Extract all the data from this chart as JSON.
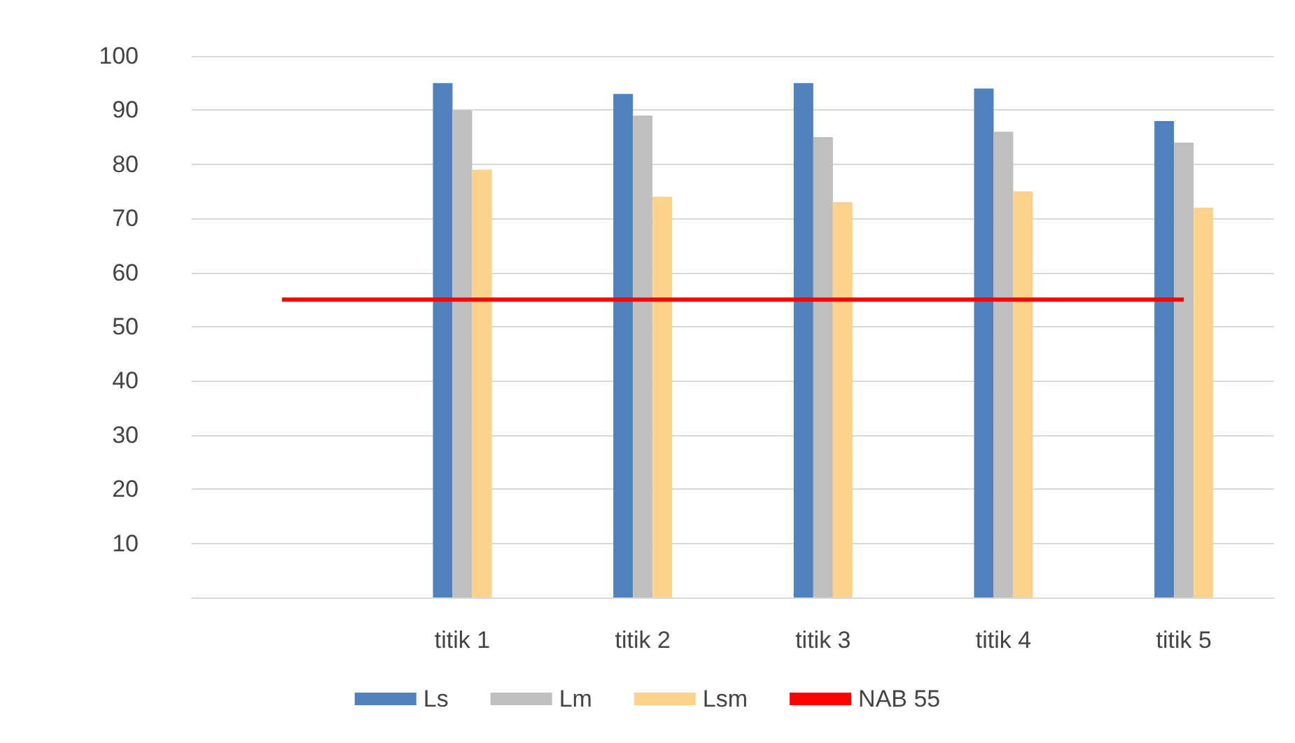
{
  "chart_data": {
    "type": "bar",
    "categories": [
      null,
      "titik 1",
      "titik 2",
      "titik 3",
      "titik 4",
      "titik 5"
    ],
    "series": [
      {
        "name": "Ls",
        "color": "#4f81bd",
        "values": [
          null,
          95,
          93,
          95,
          94,
          88
        ]
      },
      {
        "name": "Lm",
        "color": "#bfbfbf",
        "values": [
          null,
          90,
          89,
          85,
          86,
          84
        ]
      },
      {
        "name": "Lsm",
        "color": "#fcd28c",
        "values": [
          null,
          79,
          74,
          73,
          75,
          72
        ]
      },
      {
        "name": "NAB 55",
        "type": "line",
        "color": "#ff0000",
        "values": [
          55,
          55,
          55,
          55,
          55,
          55
        ]
      }
    ],
    "ylim": [
      0,
      100
    ],
    "yticks": [
      {
        "value": 0,
        "label": null
      },
      10,
      20,
      30,
      40,
      50,
      60,
      70,
      80,
      90,
      100
    ],
    "grid": "y",
    "legend": "bottom",
    "marker": "none"
  }
}
